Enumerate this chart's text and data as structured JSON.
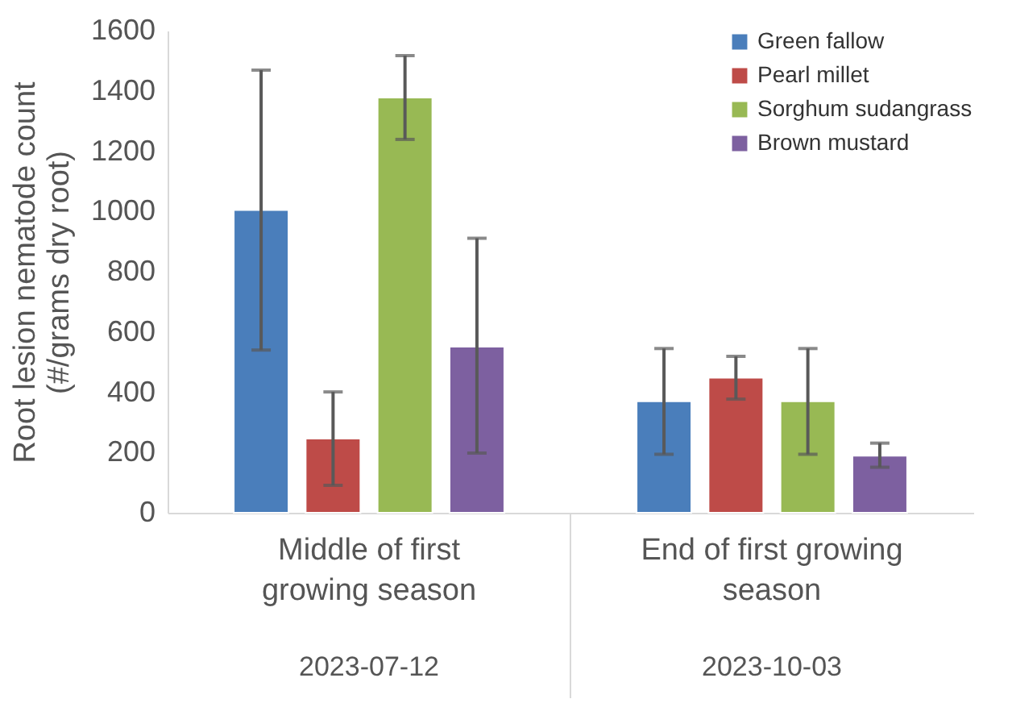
{
  "chart_data": {
    "type": "bar",
    "ylabel": "Root lesion nematode count (#/grams dry root)",
    "categories": [
      "Middle of first growing season",
      "End of first growing season"
    ],
    "series": [
      {
        "name": "Green fallow",
        "color": "#4a7ebb",
        "values": [
          1005,
          370
        ],
        "errors": [
          [
            540,
            1469
          ],
          [
            194,
            545
          ]
        ]
      },
      {
        "name": "Pearl millet",
        "color": "#be4b48",
        "values": [
          246,
          448
        ],
        "errors": [
          [
            91,
            401
          ],
          [
            377,
            519
          ]
        ]
      },
      {
        "name": "Sorghum sudangrass",
        "color": "#98b954",
        "values": [
          1378,
          370
        ],
        "errors": [
          [
            1239,
            1517
          ],
          [
            194,
            545
          ]
        ]
      },
      {
        "name": "Brown mustard",
        "color": "#7d60a0",
        "values": [
          551,
          189
        ],
        "errors": [
          [
            198,
            911
          ],
          [
            151,
            231
          ]
        ]
      }
    ],
    "annotations": [
      "2023-07-12",
      "2023-10-03"
    ],
    "ylim": [
      0,
      1600
    ],
    "yticks": [
      0,
      200,
      400,
      600,
      800,
      1000,
      1200,
      1400,
      1600
    ],
    "grid": false,
    "legend": "top right"
  }
}
